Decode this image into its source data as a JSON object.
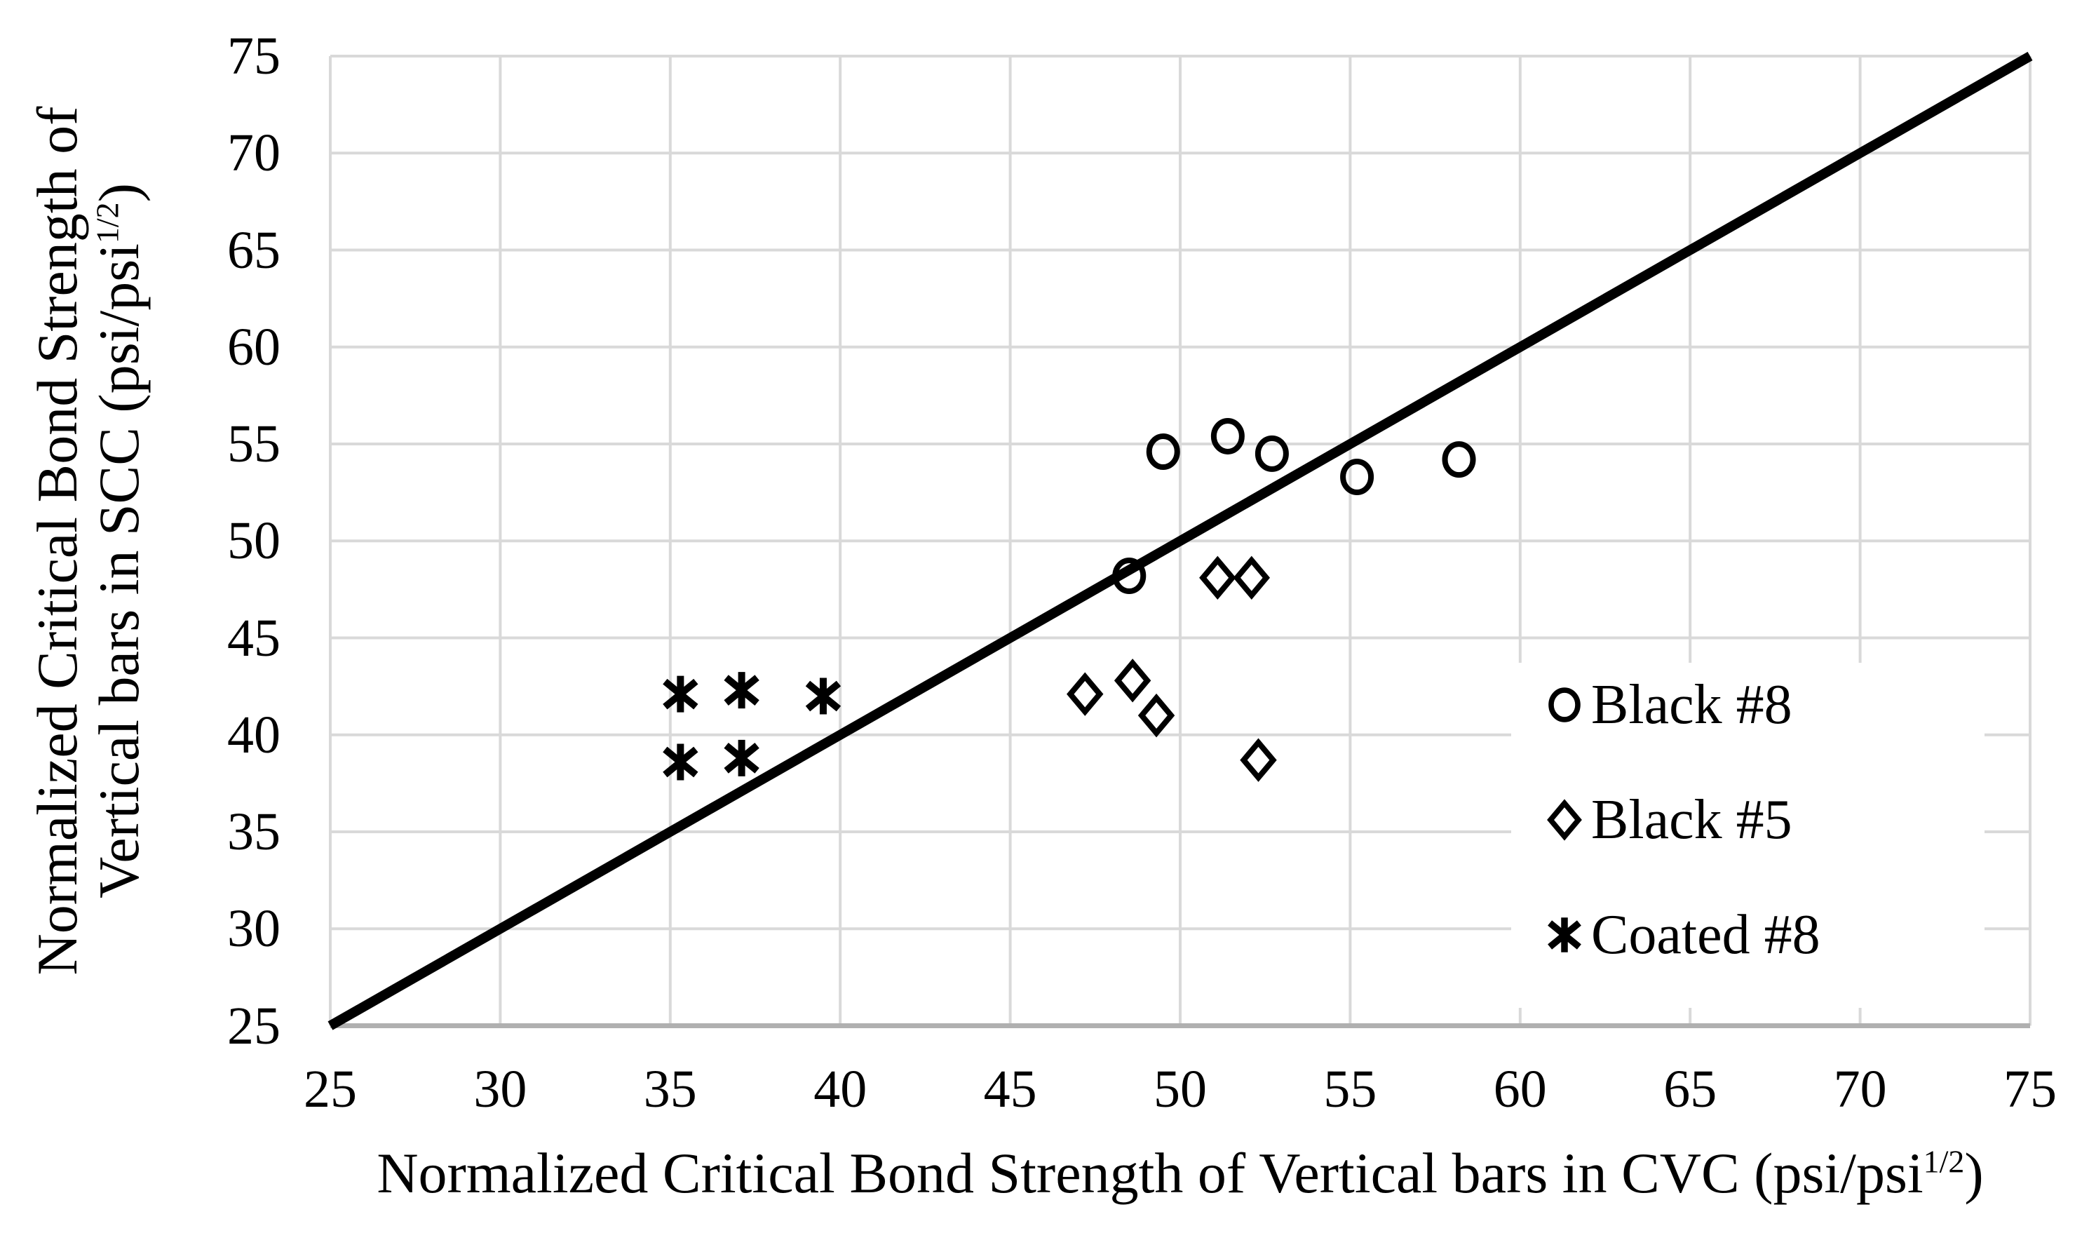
{
  "figure": {
    "x_axis": {
      "title_prefix": "Normalized Critical Bond Strength of Vertical bars in CVC (psi/psi",
      "title_sup": "1/2",
      "title_suffix": ")"
    },
    "y_axis": {
      "title_line1": "Normalized Critical Bond Strength of",
      "title_line2_prefix": "Vertical bars in SCC (psi/psi",
      "title_line2_sup": "1/2",
      "title_line2_suffix": ")"
    },
    "colors": {
      "marker": "#000000",
      "identity_line": "#000000",
      "gridline": "#d9d9d9",
      "axis_line": "#b0b0b0",
      "background": "#ffffff"
    }
  },
  "chart_data": {
    "type": "scatter",
    "title": "",
    "xlabel": "Normalized Critical Bond Strength of Vertical bars in CVC (psi/psi^1/2)",
    "ylabel": "Normalized Critical Bond Strength of Vertical bars in SCC (psi/psi^1/2)",
    "xlim": [
      25,
      75
    ],
    "ylim": [
      25,
      75
    ],
    "x_ticks": [
      25,
      30,
      35,
      40,
      45,
      50,
      55,
      60,
      65,
      70,
      75
    ],
    "y_ticks": [
      25,
      30,
      35,
      40,
      45,
      50,
      55,
      60,
      65,
      70,
      75
    ],
    "grid": true,
    "legend_position": "inside-right",
    "series": [
      {
        "name": "Black #8",
        "marker": "circle",
        "points": [
          [
            48.5,
            48.2
          ],
          [
            49.5,
            54.6
          ],
          [
            51.4,
            55.4
          ],
          [
            52.7,
            54.5
          ],
          [
            55.2,
            53.3
          ],
          [
            58.2,
            54.2
          ]
        ]
      },
      {
        "name": "Black #5",
        "marker": "diamond",
        "points": [
          [
            47.2,
            42.1
          ],
          [
            48.6,
            42.8
          ],
          [
            49.3,
            41.0
          ],
          [
            51.1,
            48.1
          ],
          [
            52.1,
            48.1
          ],
          [
            52.3,
            38.7
          ]
        ]
      },
      {
        "name": "Coated #8",
        "marker": "asterisk",
        "points": [
          [
            35.3,
            42.1
          ],
          [
            37.1,
            42.3
          ],
          [
            39.5,
            42.0
          ],
          [
            35.3,
            38.6
          ],
          [
            37.1,
            38.8
          ]
        ]
      }
    ],
    "reference_line": {
      "name": "1:1 equality line",
      "from": [
        25,
        25
      ],
      "to": [
        75,
        75
      ]
    }
  }
}
